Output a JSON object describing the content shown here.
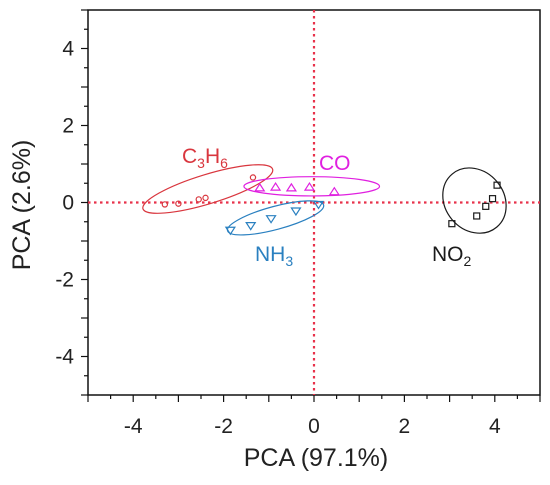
{
  "chart_data": {
    "type": "scatter",
    "title": "",
    "xlabel": "PCA (97.1%)",
    "ylabel": "PCA (2.6%)",
    "xlim": [
      -5,
      5
    ],
    "ylim": [
      -5,
      5
    ],
    "x_ticks": [
      -4,
      -2,
      0,
      2,
      4
    ],
    "y_ticks": [
      -4,
      -2,
      0,
      2,
      4
    ],
    "x_tick_labels": [
      "-4",
      "-2",
      "0",
      "2",
      "4"
    ],
    "y_tick_labels": [
      "-4",
      "-2",
      "0",
      "2",
      "4"
    ],
    "reference_lines": {
      "x": 0,
      "y": 0,
      "style": "dotted",
      "color": "#e8314a"
    },
    "grid": false,
    "series": [
      {
        "name": "C3H6",
        "label_main": "C",
        "label_sub1": "3",
        "label_mid": "H",
        "label_sub2": "6",
        "marker": "circle",
        "color": "#d9363e",
        "points": [
          [
            -3.3,
            -0.05
          ],
          [
            -3.0,
            -0.03
          ],
          [
            -2.55,
            0.08
          ],
          [
            -2.4,
            0.12
          ],
          [
            -1.35,
            0.65
          ]
        ],
        "ellipse": {
          "cx": -2.35,
          "cy": 0.35,
          "rx": 1.5,
          "ry": 0.38,
          "angle": 17
        }
      },
      {
        "name": "CO",
        "label_main": "CO",
        "marker": "triangle-up",
        "color": "#e020e0",
        "points": [
          [
            -1.2,
            0.38
          ],
          [
            -0.85,
            0.4
          ],
          [
            -0.5,
            0.38
          ],
          [
            -0.1,
            0.4
          ],
          [
            0.45,
            0.28
          ]
        ],
        "ellipse": {
          "cx": -0.05,
          "cy": 0.42,
          "rx": 1.5,
          "ry": 0.25,
          "angle": 0
        }
      },
      {
        "name": "NH3",
        "label_main": "NH",
        "label_sub1": "3",
        "marker": "triangle-down",
        "color": "#2a80c0",
        "points": [
          [
            -1.85,
            -0.72
          ],
          [
            -1.4,
            -0.6
          ],
          [
            -0.95,
            -0.42
          ],
          [
            -0.4,
            -0.22
          ],
          [
            0.1,
            -0.05
          ]
        ],
        "ellipse": {
          "cx": -0.85,
          "cy": -0.4,
          "rx": 1.1,
          "ry": 0.3,
          "angle": 15
        }
      },
      {
        "name": "NO2",
        "label_main": "NO",
        "label_sub1": "2",
        "marker": "square",
        "color": "#1a1a1a",
        "points": [
          [
            3.05,
            -0.55
          ],
          [
            3.6,
            -0.35
          ],
          [
            3.8,
            -0.1
          ],
          [
            3.95,
            0.1
          ],
          [
            4.05,
            0.45
          ]
        ],
        "ellipse": {
          "cx": 3.55,
          "cy": 0.05,
          "rx": 0.65,
          "ry": 0.9,
          "angle": 40
        }
      }
    ]
  }
}
